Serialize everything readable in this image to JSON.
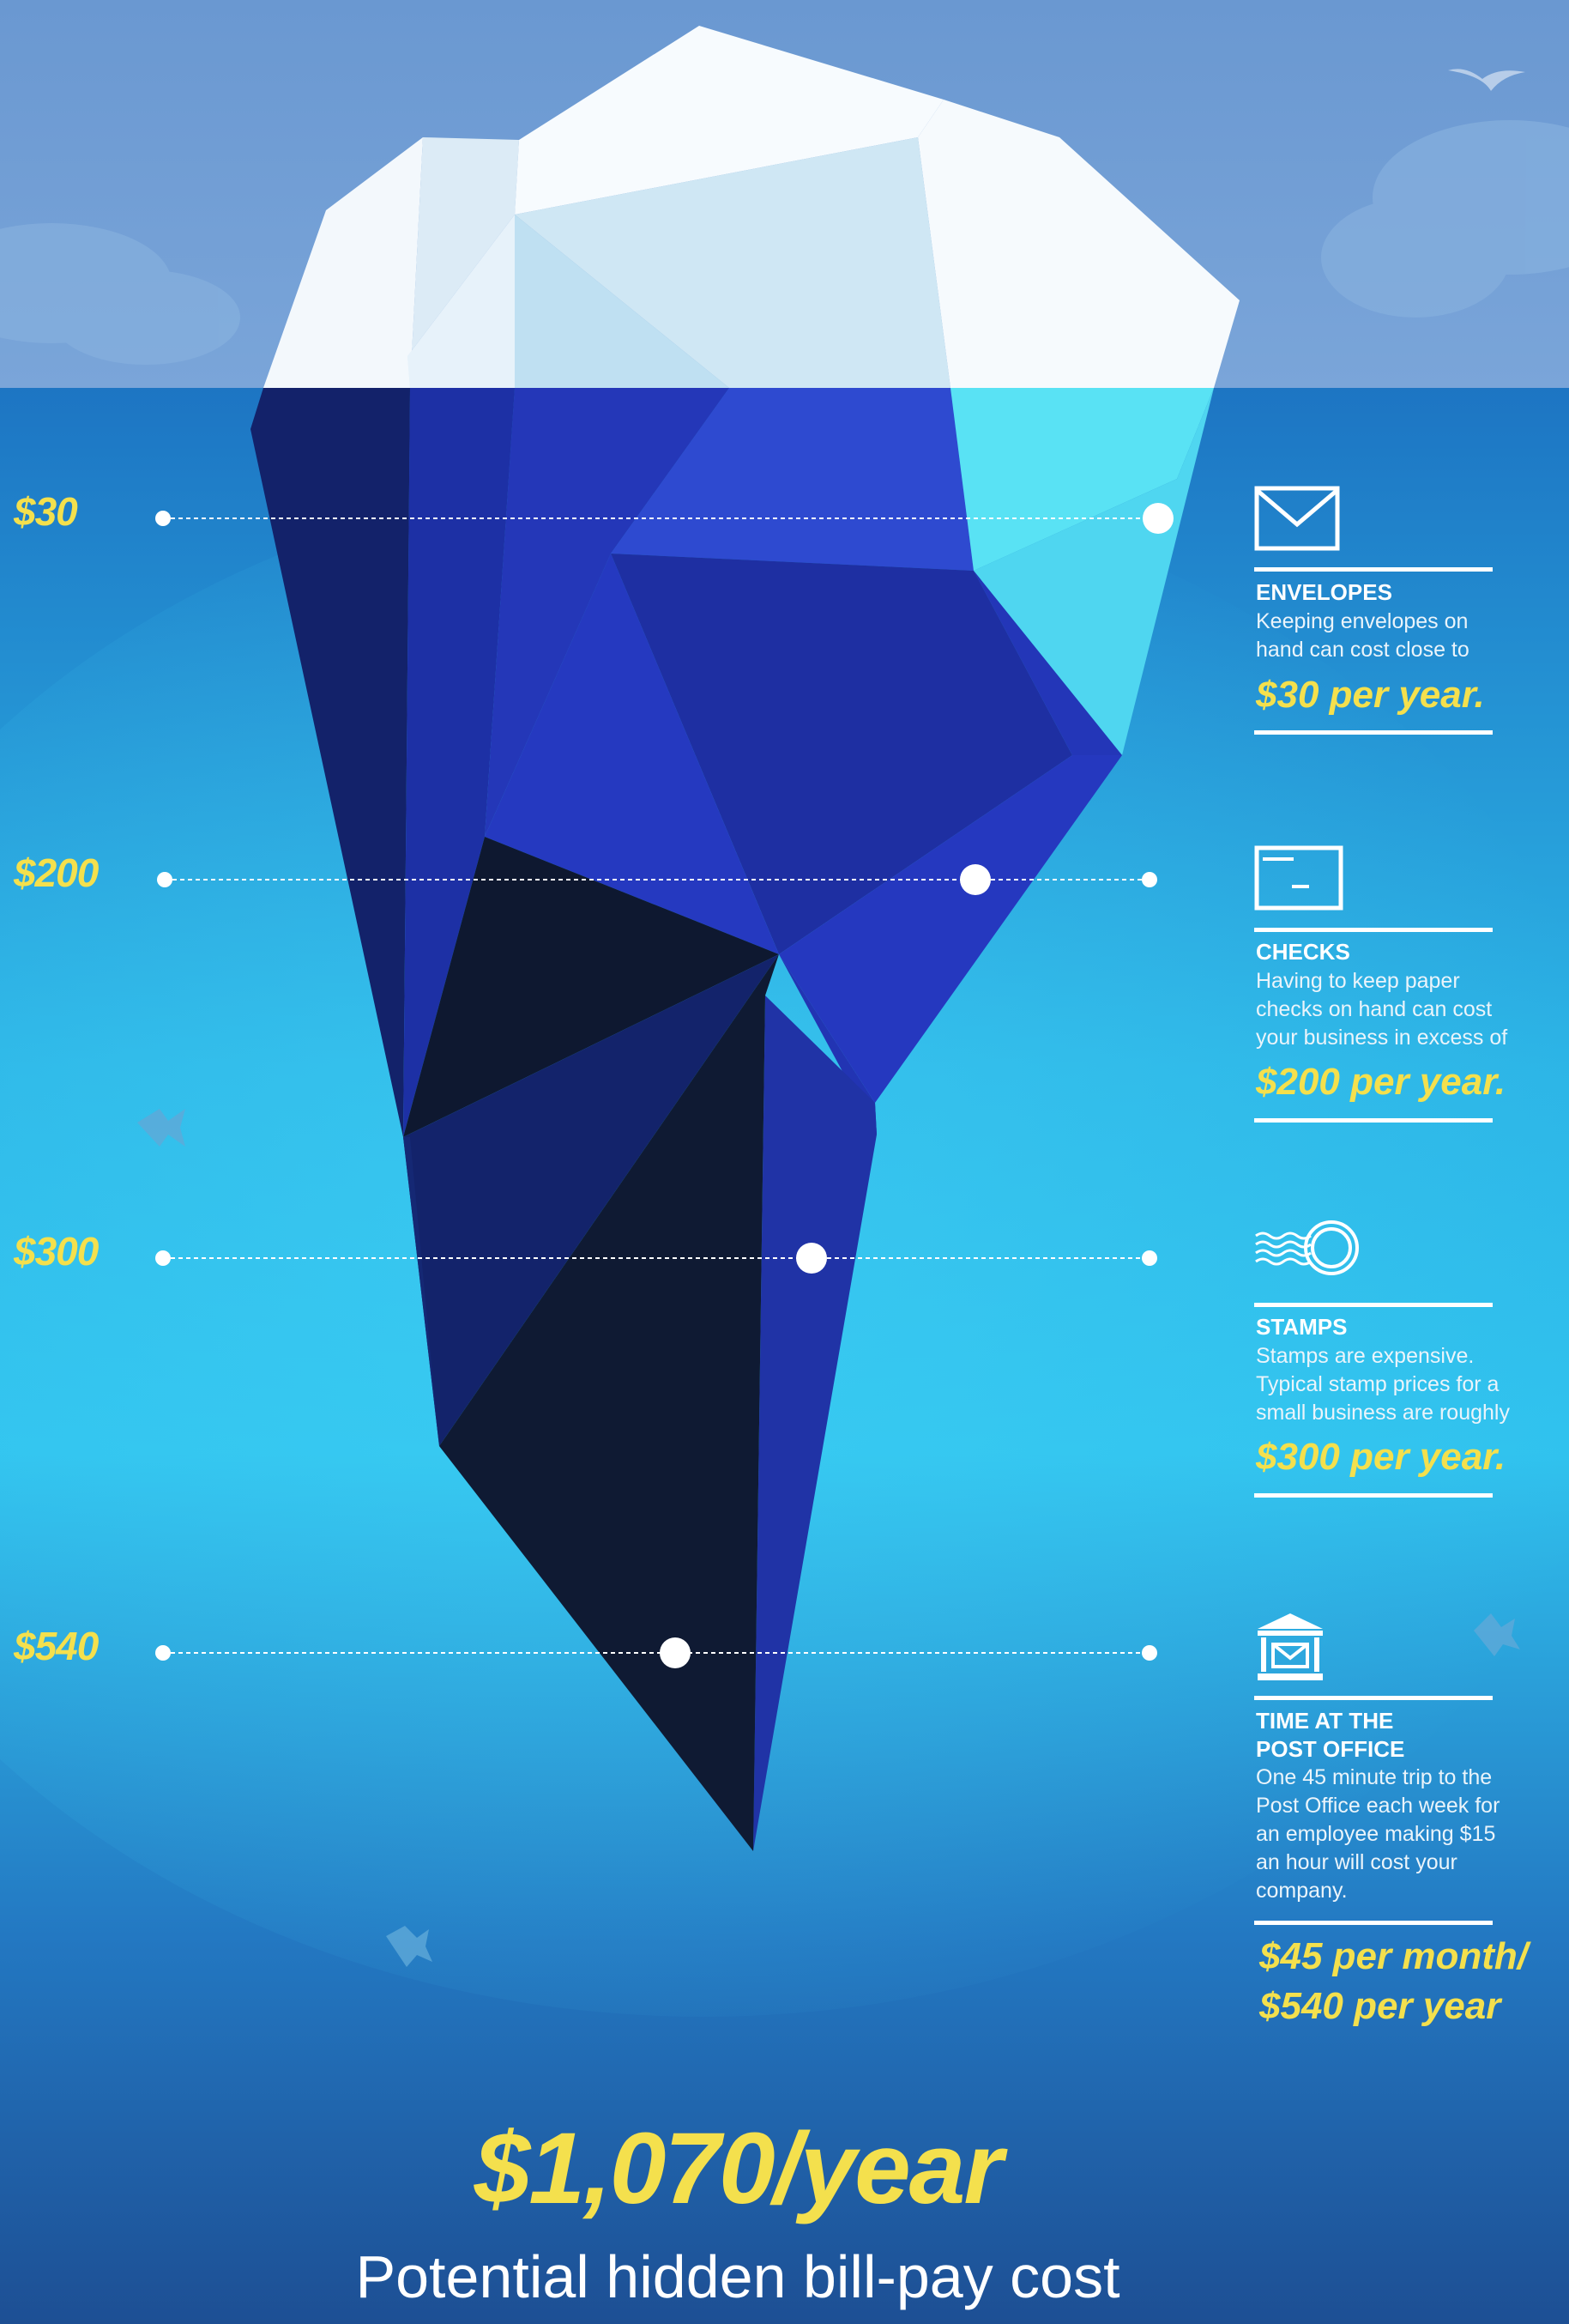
{
  "colors": {
    "sky": "#6797cf",
    "water_top": "#1d75c3",
    "water_mid": "#2dbde8",
    "water_bottom": "#1d5aa0",
    "accent_yellow": "#f4e04d",
    "text_white": "#ffffff"
  },
  "levels": [
    {
      "label": "$30"
    },
    {
      "label": "$200"
    },
    {
      "label": "$300"
    },
    {
      "label": "$540"
    }
  ],
  "cards": [
    {
      "icon": "envelope-icon",
      "title": "ENVELOPES",
      "body": "Keeping envelopes on hand can cost close to",
      "amount": "$30 per year."
    },
    {
      "icon": "check-icon",
      "title": "CHECKS",
      "body": "Having to keep paper checks on hand can cost your business in excess of",
      "amount": "$200 per year."
    },
    {
      "icon": "stamp-icon",
      "title": "STAMPS",
      "body": "Stamps are expensive. Typical stamp prices for a small business are roughly",
      "amount": "$300 per year."
    },
    {
      "icon": "post-office-icon",
      "title_line1": "TIME AT THE",
      "title_line2": "POST OFFICE",
      "body": "One 45 minute trip to the Post Office each week for an employee making $15 an hour will cost your company.",
      "amount_line1": "$45 per month/",
      "amount_line2": "$540 per year"
    }
  ],
  "total": "$1,070/year",
  "subtitle": "Potential hidden bill-pay cost"
}
